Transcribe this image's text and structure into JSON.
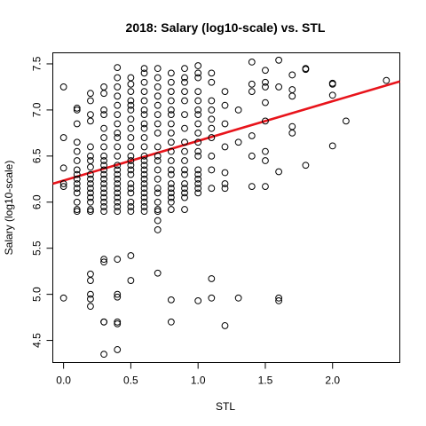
{
  "chart_data": {
    "type": "scatter",
    "title": "2018: Salary (log10-scale) vs. STL",
    "xlabel": "STL",
    "ylabel": "Salary (log10-scale)",
    "xlim": [
      -0.08,
      2.5
    ],
    "ylim": [
      4.26,
      7.62
    ],
    "xticks": [
      0.0,
      0.5,
      1.0,
      1.5,
      2.0
    ],
    "xtick_labels": [
      "0.0",
      "0.5",
      "1.0",
      "1.5",
      "2.0"
    ],
    "yticks": [
      4.5,
      5.0,
      5.5,
      6.0,
      6.5,
      7.0,
      7.5
    ],
    "ytick_labels": [
      "4.5",
      "5.0",
      "5.5",
      "6.0",
      "6.5",
      "7.0",
      "7.5"
    ],
    "grid": false,
    "colors": {
      "points": "#000000",
      "fit_line": "#e8141b"
    },
    "fit_line": {
      "x": [
        -0.08,
        2.5
      ],
      "y": [
        6.2,
        7.31
      ]
    },
    "points": [
      [
        0.0,
        7.25
      ],
      [
        0.0,
        6.7
      ],
      [
        0.0,
        6.37
      ],
      [
        0.0,
        6.2
      ],
      [
        0.0,
        6.17
      ],
      [
        0.0,
        4.96
      ],
      [
        0.1,
        7.02
      ],
      [
        0.1,
        7.0
      ],
      [
        0.1,
        6.85
      ],
      [
        0.1,
        6.65
      ],
      [
        0.1,
        6.55
      ],
      [
        0.1,
        6.45
      ],
      [
        0.1,
        6.35
      ],
      [
        0.1,
        6.3
      ],
      [
        0.1,
        6.25
      ],
      [
        0.1,
        6.2
      ],
      [
        0.1,
        6.15
      ],
      [
        0.1,
        6.1
      ],
      [
        0.1,
        6.0
      ],
      [
        0.1,
        5.92
      ],
      [
        0.1,
        5.9
      ],
      [
        0.2,
        7.18
      ],
      [
        0.2,
        7.1
      ],
      [
        0.2,
        6.95
      ],
      [
        0.2,
        6.88
      ],
      [
        0.2,
        6.6
      ],
      [
        0.2,
        6.5
      ],
      [
        0.2,
        6.45
      ],
      [
        0.2,
        6.38
      ],
      [
        0.2,
        6.3
      ],
      [
        0.2,
        6.25
      ],
      [
        0.2,
        6.2
      ],
      [
        0.2,
        6.15
      ],
      [
        0.2,
        6.1
      ],
      [
        0.2,
        6.05
      ],
      [
        0.2,
        6.0
      ],
      [
        0.2,
        5.92
      ],
      [
        0.2,
        5.9
      ],
      [
        0.2,
        5.22
      ],
      [
        0.2,
        5.15
      ],
      [
        0.2,
        5.0
      ],
      [
        0.2,
        4.95
      ],
      [
        0.2,
        4.87
      ],
      [
        0.3,
        7.25
      ],
      [
        0.3,
        7.18
      ],
      [
        0.3,
        7.0
      ],
      [
        0.3,
        6.95
      ],
      [
        0.3,
        6.8
      ],
      [
        0.3,
        6.7
      ],
      [
        0.3,
        6.6
      ],
      [
        0.3,
        6.5
      ],
      [
        0.3,
        6.45
      ],
      [
        0.3,
        6.4
      ],
      [
        0.3,
        6.35
      ],
      [
        0.3,
        6.3
      ],
      [
        0.3,
        6.25
      ],
      [
        0.3,
        6.2
      ],
      [
        0.3,
        6.15
      ],
      [
        0.3,
        6.1
      ],
      [
        0.3,
        6.05
      ],
      [
        0.3,
        6.0
      ],
      [
        0.3,
        5.95
      ],
      [
        0.3,
        5.9
      ],
      [
        0.3,
        5.38
      ],
      [
        0.3,
        5.35
      ],
      [
        0.3,
        4.7
      ],
      [
        0.3,
        4.7
      ],
      [
        0.3,
        4.35
      ],
      [
        0.4,
        7.46
      ],
      [
        0.4,
        7.35
      ],
      [
        0.4,
        7.25
      ],
      [
        0.4,
        7.15
      ],
      [
        0.4,
        7.05
      ],
      [
        0.4,
        6.95
      ],
      [
        0.4,
        6.85
      ],
      [
        0.4,
        6.75
      ],
      [
        0.4,
        6.7
      ],
      [
        0.4,
        6.6
      ],
      [
        0.4,
        6.5
      ],
      [
        0.4,
        6.4
      ],
      [
        0.4,
        6.35
      ],
      [
        0.4,
        6.3
      ],
      [
        0.4,
        6.25
      ],
      [
        0.4,
        6.2
      ],
      [
        0.4,
        6.15
      ],
      [
        0.4,
        6.1
      ],
      [
        0.4,
        6.05
      ],
      [
        0.4,
        6.0
      ],
      [
        0.4,
        5.95
      ],
      [
        0.4,
        5.9
      ],
      [
        0.4,
        5.38
      ],
      [
        0.4,
        5.0
      ],
      [
        0.4,
        4.97
      ],
      [
        0.4,
        4.7
      ],
      [
        0.4,
        4.68
      ],
      [
        0.4,
        4.4
      ],
      [
        0.5,
        7.35
      ],
      [
        0.5,
        7.28
      ],
      [
        0.5,
        7.2
      ],
      [
        0.5,
        7.1
      ],
      [
        0.5,
        7.05
      ],
      [
        0.5,
        7.0
      ],
      [
        0.5,
        6.9
      ],
      [
        0.5,
        6.8
      ],
      [
        0.5,
        6.7
      ],
      [
        0.5,
        6.6
      ],
      [
        0.5,
        6.5
      ],
      [
        0.5,
        6.45
      ],
      [
        0.5,
        6.4
      ],
      [
        0.5,
        6.35
      ],
      [
        0.5,
        6.3
      ],
      [
        0.5,
        6.2
      ],
      [
        0.5,
        6.15
      ],
      [
        0.5,
        6.1
      ],
      [
        0.5,
        6.0
      ],
      [
        0.5,
        5.95
      ],
      [
        0.5,
        5.9
      ],
      [
        0.5,
        5.42
      ],
      [
        0.5,
        5.15
      ],
      [
        0.6,
        7.45
      ],
      [
        0.6,
        7.4
      ],
      [
        0.6,
        7.3
      ],
      [
        0.6,
        7.2
      ],
      [
        0.6,
        7.1
      ],
      [
        0.6,
        7.0
      ],
      [
        0.6,
        6.95
      ],
      [
        0.6,
        6.85
      ],
      [
        0.6,
        6.8
      ],
      [
        0.6,
        6.7
      ],
      [
        0.6,
        6.6
      ],
      [
        0.6,
        6.5
      ],
      [
        0.6,
        6.45
      ],
      [
        0.6,
        6.4
      ],
      [
        0.6,
        6.35
      ],
      [
        0.6,
        6.3
      ],
      [
        0.6,
        6.25
      ],
      [
        0.6,
        6.2
      ],
      [
        0.6,
        6.15
      ],
      [
        0.6,
        6.1
      ],
      [
        0.6,
        6.05
      ],
      [
        0.6,
        6.0
      ],
      [
        0.6,
        5.95
      ],
      [
        0.6,
        5.9
      ],
      [
        0.7,
        7.45
      ],
      [
        0.7,
        7.35
      ],
      [
        0.7,
        7.25
      ],
      [
        0.7,
        7.15
      ],
      [
        0.7,
        7.05
      ],
      [
        0.7,
        6.95
      ],
      [
        0.7,
        6.85
      ],
      [
        0.7,
        6.75
      ],
      [
        0.7,
        6.6
      ],
      [
        0.7,
        6.5
      ],
      [
        0.7,
        6.45
      ],
      [
        0.7,
        6.35
      ],
      [
        0.7,
        6.25
      ],
      [
        0.7,
        6.15
      ],
      [
        0.7,
        6.1
      ],
      [
        0.7,
        6.0
      ],
      [
        0.7,
        5.92
      ],
      [
        0.7,
        5.9
      ],
      [
        0.7,
        5.8
      ],
      [
        0.7,
        5.7
      ],
      [
        0.7,
        5.23
      ],
      [
        0.8,
        7.4
      ],
      [
        0.8,
        7.3
      ],
      [
        0.8,
        7.2
      ],
      [
        0.8,
        7.1
      ],
      [
        0.8,
        7.0
      ],
      [
        0.8,
        6.95
      ],
      [
        0.8,
        6.85
      ],
      [
        0.8,
        6.75
      ],
      [
        0.8,
        6.65
      ],
      [
        0.8,
        6.55
      ],
      [
        0.8,
        6.45
      ],
      [
        0.8,
        6.35
      ],
      [
        0.8,
        6.3
      ],
      [
        0.8,
        6.2
      ],
      [
        0.8,
        6.15
      ],
      [
        0.8,
        6.1
      ],
      [
        0.8,
        6.05
      ],
      [
        0.8,
        6.0
      ],
      [
        0.8,
        5.92
      ],
      [
        0.8,
        4.94
      ],
      [
        0.8,
        4.7
      ],
      [
        0.9,
        7.45
      ],
      [
        0.9,
        7.35
      ],
      [
        0.9,
        7.3
      ],
      [
        0.9,
        7.2
      ],
      [
        0.9,
        7.1
      ],
      [
        0.9,
        6.95
      ],
      [
        0.9,
        6.8
      ],
      [
        0.9,
        6.65
      ],
      [
        0.9,
        6.55
      ],
      [
        0.9,
        6.45
      ],
      [
        0.9,
        6.35
      ],
      [
        0.9,
        6.3
      ],
      [
        0.9,
        6.2
      ],
      [
        0.9,
        6.15
      ],
      [
        0.9,
        6.1
      ],
      [
        0.9,
        6.05
      ],
      [
        0.9,
        5.92
      ],
      [
        1.0,
        7.48
      ],
      [
        1.0,
        7.4
      ],
      [
        1.0,
        7.35
      ],
      [
        1.0,
        7.2
      ],
      [
        1.0,
        7.1
      ],
      [
        1.0,
        7.0
      ],
      [
        1.0,
        6.95
      ],
      [
        1.0,
        6.85
      ],
      [
        1.0,
        6.75
      ],
      [
        1.0,
        6.65
      ],
      [
        1.0,
        6.55
      ],
      [
        1.0,
        6.5
      ],
      [
        1.0,
        6.35
      ],
      [
        1.0,
        6.3
      ],
      [
        1.0,
        6.25
      ],
      [
        1.0,
        6.2
      ],
      [
        1.0,
        6.15
      ],
      [
        1.0,
        6.1
      ],
      [
        1.0,
        4.93
      ],
      [
        1.1,
        7.4
      ],
      [
        1.1,
        7.3
      ],
      [
        1.1,
        7.1
      ],
      [
        1.1,
        7.0
      ],
      [
        1.1,
        6.9
      ],
      [
        1.1,
        6.8
      ],
      [
        1.1,
        6.7
      ],
      [
        1.1,
        6.5
      ],
      [
        1.1,
        6.35
      ],
      [
        1.1,
        6.15
      ],
      [
        1.1,
        5.17
      ],
      [
        1.1,
        4.96
      ],
      [
        1.2,
        7.2
      ],
      [
        1.2,
        7.05
      ],
      [
        1.2,
        6.85
      ],
      [
        1.2,
        6.6
      ],
      [
        1.2,
        6.32
      ],
      [
        1.2,
        6.2
      ],
      [
        1.2,
        6.15
      ],
      [
        1.2,
        4.66
      ],
      [
        1.3,
        7.0
      ],
      [
        1.3,
        6.65
      ],
      [
        1.3,
        4.96
      ],
      [
        1.4,
        7.52
      ],
      [
        1.4,
        7.28
      ],
      [
        1.4,
        7.2
      ],
      [
        1.4,
        6.72
      ],
      [
        1.4,
        6.5
      ],
      [
        1.4,
        6.17
      ],
      [
        1.5,
        7.43
      ],
      [
        1.5,
        7.3
      ],
      [
        1.5,
        7.25
      ],
      [
        1.5,
        7.08
      ],
      [
        1.5,
        6.88
      ],
      [
        1.5,
        6.55
      ],
      [
        1.5,
        6.45
      ],
      [
        1.5,
        6.17
      ],
      [
        1.6,
        7.54
      ],
      [
        1.6,
        7.25
      ],
      [
        1.6,
        6.33
      ],
      [
        1.6,
        4.96
      ],
      [
        1.6,
        4.93
      ],
      [
        1.7,
        7.38
      ],
      [
        1.7,
        7.22
      ],
      [
        1.7,
        7.15
      ],
      [
        1.7,
        6.82
      ],
      [
        1.7,
        6.75
      ],
      [
        1.8,
        7.45
      ],
      [
        1.8,
        7.44
      ],
      [
        1.8,
        6.4
      ],
      [
        2.0,
        7.29
      ],
      [
        2.0,
        7.28
      ],
      [
        2.0,
        7.16
      ],
      [
        2.0,
        6.61
      ],
      [
        2.1,
        6.88
      ],
      [
        2.4,
        7.32
      ]
    ]
  }
}
